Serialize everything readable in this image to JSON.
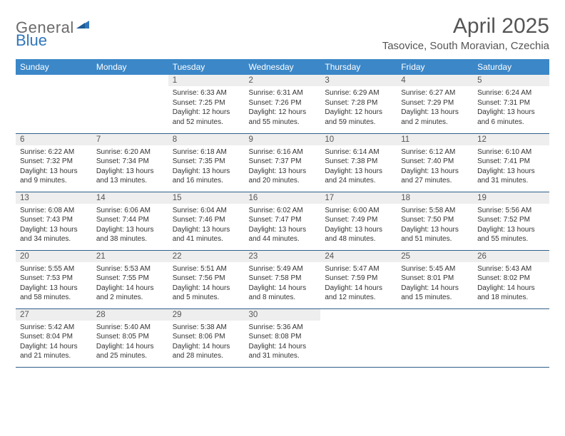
{
  "brand": {
    "general": "General",
    "blue": "Blue"
  },
  "title": "April 2025",
  "location": "Tasovice, South Moravian, Czechia",
  "colors": {
    "header_bg": "#3b87c8",
    "header_text": "#ffffff",
    "daynum_bg": "#eeeeee",
    "cell_border": "#2f5e8a",
    "brand_gray": "#6a6a6a",
    "brand_blue": "#2f76bb"
  },
  "weekdays": [
    "Sunday",
    "Monday",
    "Tuesday",
    "Wednesday",
    "Thursday",
    "Friday",
    "Saturday"
  ],
  "weeks": [
    [
      null,
      null,
      {
        "n": "1",
        "sr": "6:33 AM",
        "ss": "7:25 PM",
        "dl": "12 hours and 52 minutes."
      },
      {
        "n": "2",
        "sr": "6:31 AM",
        "ss": "7:26 PM",
        "dl": "12 hours and 55 minutes."
      },
      {
        "n": "3",
        "sr": "6:29 AM",
        "ss": "7:28 PM",
        "dl": "12 hours and 59 minutes."
      },
      {
        "n": "4",
        "sr": "6:27 AM",
        "ss": "7:29 PM",
        "dl": "13 hours and 2 minutes."
      },
      {
        "n": "5",
        "sr": "6:24 AM",
        "ss": "7:31 PM",
        "dl": "13 hours and 6 minutes."
      }
    ],
    [
      {
        "n": "6",
        "sr": "6:22 AM",
        "ss": "7:32 PM",
        "dl": "13 hours and 9 minutes."
      },
      {
        "n": "7",
        "sr": "6:20 AM",
        "ss": "7:34 PM",
        "dl": "13 hours and 13 minutes."
      },
      {
        "n": "8",
        "sr": "6:18 AM",
        "ss": "7:35 PM",
        "dl": "13 hours and 16 minutes."
      },
      {
        "n": "9",
        "sr": "6:16 AM",
        "ss": "7:37 PM",
        "dl": "13 hours and 20 minutes."
      },
      {
        "n": "10",
        "sr": "6:14 AM",
        "ss": "7:38 PM",
        "dl": "13 hours and 24 minutes."
      },
      {
        "n": "11",
        "sr": "6:12 AM",
        "ss": "7:40 PM",
        "dl": "13 hours and 27 minutes."
      },
      {
        "n": "12",
        "sr": "6:10 AM",
        "ss": "7:41 PM",
        "dl": "13 hours and 31 minutes."
      }
    ],
    [
      {
        "n": "13",
        "sr": "6:08 AM",
        "ss": "7:43 PM",
        "dl": "13 hours and 34 minutes."
      },
      {
        "n": "14",
        "sr": "6:06 AM",
        "ss": "7:44 PM",
        "dl": "13 hours and 38 minutes."
      },
      {
        "n": "15",
        "sr": "6:04 AM",
        "ss": "7:46 PM",
        "dl": "13 hours and 41 minutes."
      },
      {
        "n": "16",
        "sr": "6:02 AM",
        "ss": "7:47 PM",
        "dl": "13 hours and 44 minutes."
      },
      {
        "n": "17",
        "sr": "6:00 AM",
        "ss": "7:49 PM",
        "dl": "13 hours and 48 minutes."
      },
      {
        "n": "18",
        "sr": "5:58 AM",
        "ss": "7:50 PM",
        "dl": "13 hours and 51 minutes."
      },
      {
        "n": "19",
        "sr": "5:56 AM",
        "ss": "7:52 PM",
        "dl": "13 hours and 55 minutes."
      }
    ],
    [
      {
        "n": "20",
        "sr": "5:55 AM",
        "ss": "7:53 PM",
        "dl": "13 hours and 58 minutes."
      },
      {
        "n": "21",
        "sr": "5:53 AM",
        "ss": "7:55 PM",
        "dl": "14 hours and 2 minutes."
      },
      {
        "n": "22",
        "sr": "5:51 AM",
        "ss": "7:56 PM",
        "dl": "14 hours and 5 minutes."
      },
      {
        "n": "23",
        "sr": "5:49 AM",
        "ss": "7:58 PM",
        "dl": "14 hours and 8 minutes."
      },
      {
        "n": "24",
        "sr": "5:47 AM",
        "ss": "7:59 PM",
        "dl": "14 hours and 12 minutes."
      },
      {
        "n": "25",
        "sr": "5:45 AM",
        "ss": "8:01 PM",
        "dl": "14 hours and 15 minutes."
      },
      {
        "n": "26",
        "sr": "5:43 AM",
        "ss": "8:02 PM",
        "dl": "14 hours and 18 minutes."
      }
    ],
    [
      {
        "n": "27",
        "sr": "5:42 AM",
        "ss": "8:04 PM",
        "dl": "14 hours and 21 minutes."
      },
      {
        "n": "28",
        "sr": "5:40 AM",
        "ss": "8:05 PM",
        "dl": "14 hours and 25 minutes."
      },
      {
        "n": "29",
        "sr": "5:38 AM",
        "ss": "8:06 PM",
        "dl": "14 hours and 28 minutes."
      },
      {
        "n": "30",
        "sr": "5:36 AM",
        "ss": "8:08 PM",
        "dl": "14 hours and 31 minutes."
      },
      null,
      null,
      null
    ]
  ],
  "labels": {
    "sunrise": "Sunrise:",
    "sunset": "Sunset:",
    "daylight": "Daylight:"
  }
}
